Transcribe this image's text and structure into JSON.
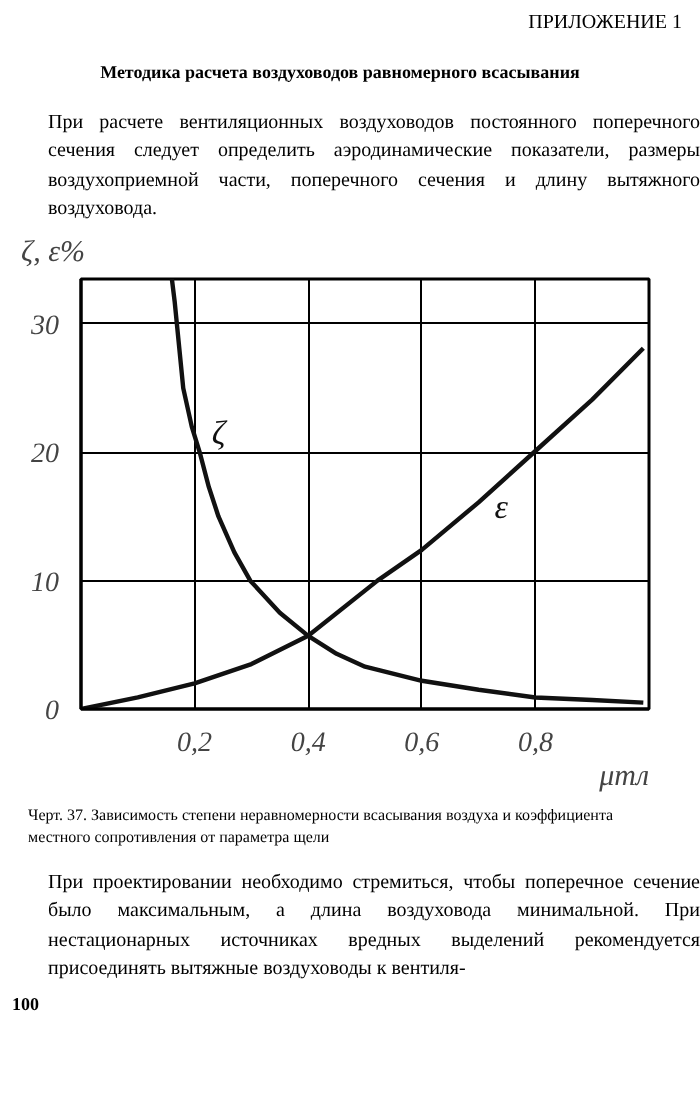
{
  "chart_data": {
    "type": "line",
    "title": "Методика расчета воздуховодов равномерного всасывания",
    "subtitle": "При расчете вентиляционных воздуховодов постоянного поперечного сечения следует определить аэродинамические показатели, размеры воздухоприемной части, поперечного сечения и длину вытяжного воздуховода.",
    "annotations": [
      "ПРИЛОЖЕНИЕ 1",
      "Черт. 37. Зависимость степени неравномерности всасывания воздуха и коэффициента местного сопротивления от параметра щели",
      "При проектировании необходимо стремиться, чтобы поперечное сечение было максимальным, а длина воздуховода минимальной. При нестационарных источниках вредных выделений рекомендуется присоединять вытяжные воздуховоды к вентиля-",
      "100"
    ],
    "ylabel": "ζ, ε%",
    "xlabel": "μтл",
    "xlim": [
      0,
      1.0
    ],
    "ylim": [
      0,
      33.5
    ],
    "xticks": [
      {
        "value": 0.2,
        "label": "0,2"
      },
      {
        "value": 0.4,
        "label": "0,4"
      },
      {
        "value": 0.6,
        "label": "0,6"
      },
      {
        "value": 0.8,
        "label": "0,8"
      }
    ],
    "yticks": [
      0,
      10,
      20,
      30
    ],
    "grid": true,
    "marker": "none",
    "line_style": "solid",
    "series": [
      {
        "name": "ζ",
        "color": "#111111",
        "x": [
          0.16,
          0.165,
          0.18,
          0.195,
          0.209,
          0.225,
          0.242,
          0.27,
          0.298,
          0.35,
          0.4,
          0.45,
          0.5,
          0.6,
          0.7,
          0.8,
          0.9,
          0.99
        ],
        "values": [
          33.5,
          31.7,
          25,
          22,
          20,
          17.3,
          15,
          12.2,
          10,
          7.5,
          5.7,
          4.3,
          3.3,
          2.2,
          1.5,
          0.9,
          0.7,
          0.5
        ]
      },
      {
        "name": "ε",
        "color": "#111111",
        "x": [
          0,
          0.1,
          0.2,
          0.3,
          0.4,
          0.522,
          0.6,
          0.7,
          0.8,
          0.9,
          0.99
        ],
        "values": [
          0,
          0.9,
          2.0,
          3.5,
          5.7,
          10,
          12.4,
          16.1,
          20.1,
          24.1,
          28.1
        ]
      }
    ]
  }
}
